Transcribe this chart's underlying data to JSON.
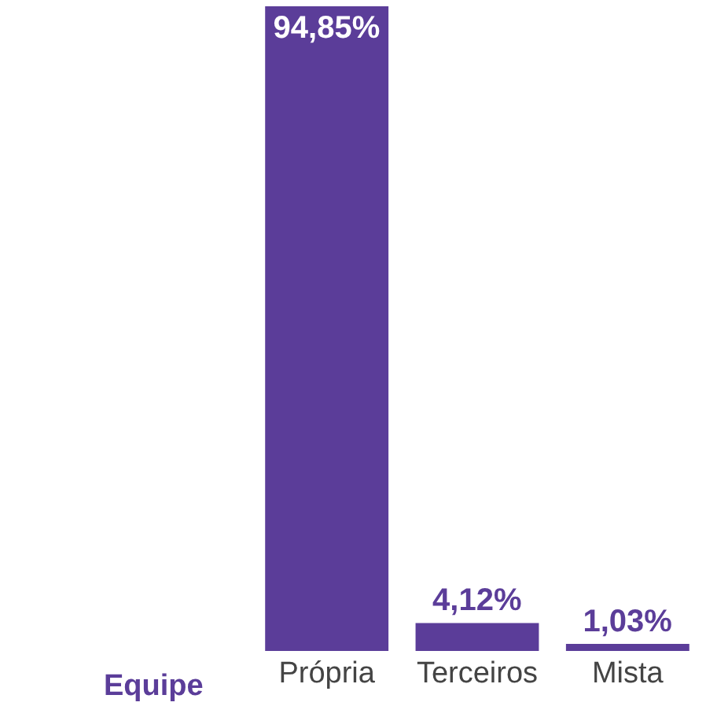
{
  "chart_data": {
    "type": "bar",
    "xlabel": "Equipe",
    "categories": [
      "Própria",
      "Terceiros",
      "Mista"
    ],
    "values": [
      94.85,
      4.12,
      1.03
    ],
    "value_labels": [
      "94,85%",
      "4,12%",
      "1,03%"
    ],
    "color": "#5b3d99",
    "grid": false,
    "legend": false
  }
}
